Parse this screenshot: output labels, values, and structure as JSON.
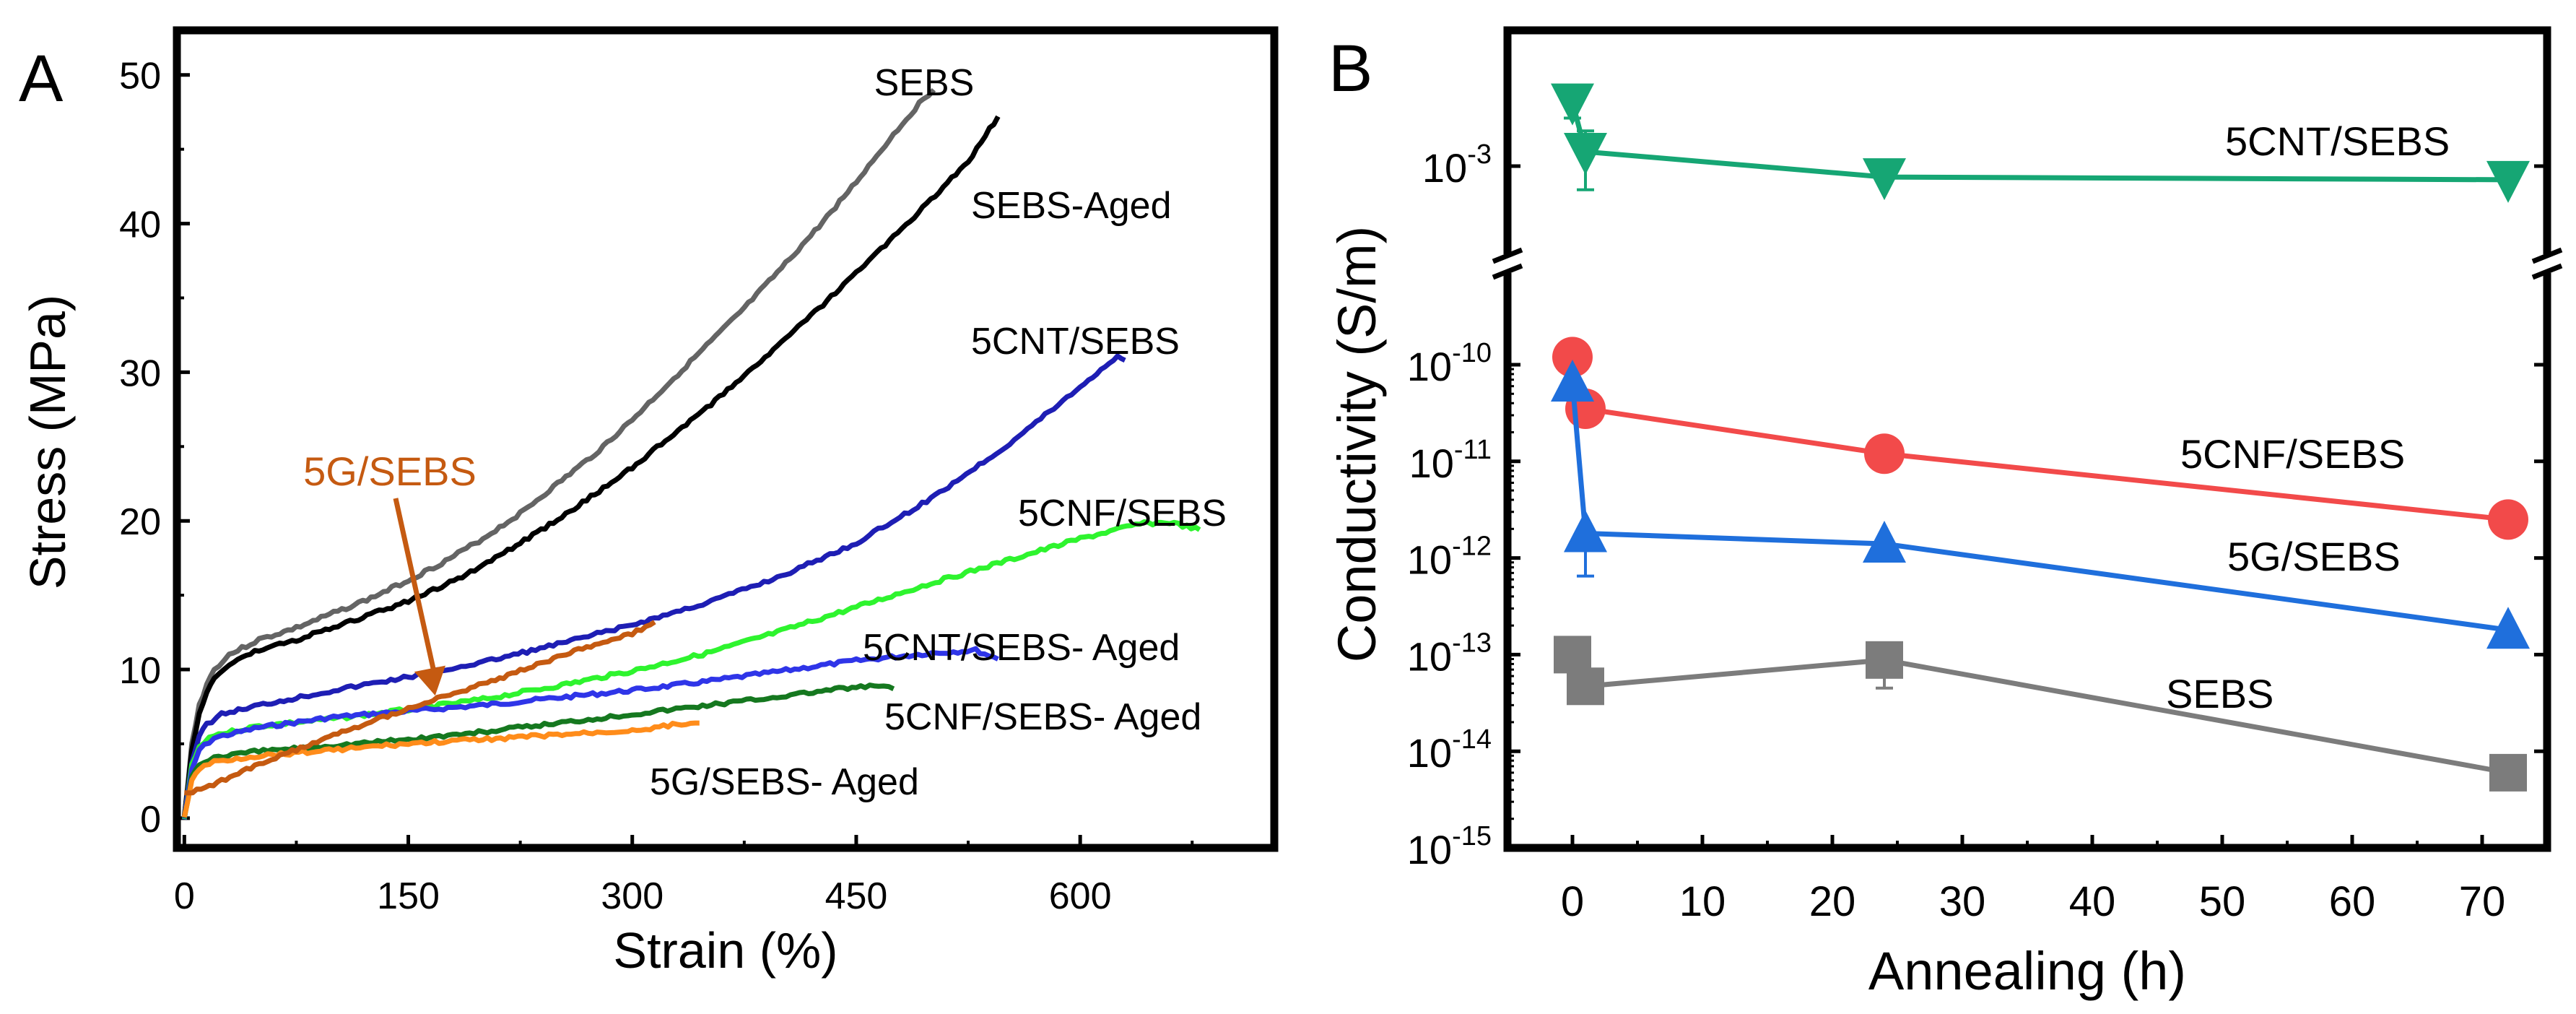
{
  "chart_data": [
    {
      "panel": "A",
      "type": "line",
      "xlabel": "Strain (%)",
      "ylabel": "Stress (MPa)",
      "xlim": [
        -5,
        730
      ],
      "ylim": [
        -2,
        53
      ],
      "xticks": [
        0,
        150,
        300,
        450,
        600
      ],
      "yticks": [
        0,
        10,
        20,
        30,
        40,
        50
      ],
      "tick_labels_x": [
        "0",
        "150",
        "300",
        "450",
        "600"
      ],
      "tick_labels_y": [
        "0",
        "10",
        "20",
        "30",
        "40",
        "50"
      ],
      "annotation": {
        "text": "5G/SEBS",
        "from": [
          140,
          24
        ],
        "to": [
          168,
          8
        ],
        "color": "#c55a11"
      },
      "series": [
        {
          "name": "SEBS",
          "label": "SEBS",
          "color": "#646464",
          "points": [
            [
              0,
              0
            ],
            [
              5,
              5
            ],
            [
              10,
              7.6
            ],
            [
              15,
              9
            ],
            [
              20,
              10
            ],
            [
              30,
              11
            ],
            [
              50,
              12
            ],
            [
              75,
              12.8
            ],
            [
              100,
              13.8
            ],
            [
              125,
              14.8
            ],
            [
              150,
              16
            ],
            [
              175,
              17.3
            ],
            [
              200,
              18.8
            ],
            [
              225,
              20.5
            ],
            [
              250,
              22.5
            ],
            [
              275,
              24.5
            ],
            [
              300,
              26.8
            ],
            [
              325,
              29.3
            ],
            [
              350,
              31.8
            ],
            [
              375,
              34.3
            ],
            [
              400,
              37
            ],
            [
              425,
              39.8
            ],
            [
              450,
              42.8
            ],
            [
              475,
              46
            ],
            [
              495,
              48.4
            ],
            [
              502,
              49
            ]
          ]
        },
        {
          "name": "SEBS-Aged",
          "label": "SEBS-Aged",
          "color": "#000000",
          "points": [
            [
              0,
              0
            ],
            [
              5,
              4.6
            ],
            [
              10,
              7
            ],
            [
              15,
              8.4
            ],
            [
              20,
              9.4
            ],
            [
              30,
              10.4
            ],
            [
              50,
              11.3
            ],
            [
              75,
              12
            ],
            [
              100,
              12.8
            ],
            [
              125,
              13.7
            ],
            [
              150,
              14.6
            ],
            [
              175,
              15.7
            ],
            [
              200,
              17
            ],
            [
              225,
              18.5
            ],
            [
              250,
              20.1
            ],
            [
              275,
              21.8
            ],
            [
              300,
              23.6
            ],
            [
              325,
              25.6
            ],
            [
              350,
              27.6
            ],
            [
              375,
              29.8
            ],
            [
              400,
              32
            ],
            [
              425,
              34.3
            ],
            [
              450,
              36.7
            ],
            [
              475,
              39.1
            ],
            [
              500,
              41.6
            ],
            [
              525,
              44.2
            ],
            [
              545,
              47.2
            ]
          ]
        },
        {
          "name": "5CNT/SEBS",
          "label": "5CNT/SEBS",
          "color": "#1e1eb4",
          "points": [
            [
              0,
              0
            ],
            [
              5,
              3.8
            ],
            [
              10,
              5.5
            ],
            [
              15,
              6.3
            ],
            [
              25,
              7
            ],
            [
              50,
              7.6
            ],
            [
              75,
              8.1
            ],
            [
              100,
              8.6
            ],
            [
              150,
              9.5
            ],
            [
              200,
              10.5
            ],
            [
              250,
              11.7
            ],
            [
              300,
              13
            ],
            [
              350,
              14.5
            ],
            [
              400,
              16.3
            ],
            [
              450,
              18.5
            ],
            [
              500,
              21.5
            ],
            [
              550,
              25
            ],
            [
              600,
              29
            ],
            [
              625,
              31.1
            ],
            [
              630,
              30.8
            ]
          ]
        },
        {
          "name": "5CNF/SEBS",
          "label": "5CNF/SEBS",
          "color": "#2ef42e",
          "points": [
            [
              0,
              0
            ],
            [
              5,
              3.5
            ],
            [
              10,
              4.8
            ],
            [
              20,
              5.6
            ],
            [
              50,
              6.2
            ],
            [
              100,
              6.7
            ],
            [
              150,
              7.3
            ],
            [
              200,
              8
            ],
            [
              250,
              8.9
            ],
            [
              300,
              9.9
            ],
            [
              350,
              11.1
            ],
            [
              400,
              12.6
            ],
            [
              450,
              14.2
            ],
            [
              500,
              15.8
            ],
            [
              550,
              17.3
            ],
            [
              600,
              18.8
            ],
            [
              640,
              19.8
            ],
            [
              660,
              19.9
            ],
            [
              680,
              19.4
            ]
          ]
        },
        {
          "name": "5CNT/SEBS- Aged",
          "label": "5CNT/SEBS- Aged",
          "color": "#2f35e8",
          "points": [
            [
              0,
              0
            ],
            [
              5,
              3.2
            ],
            [
              10,
              4.6
            ],
            [
              20,
              5.4
            ],
            [
              50,
              6.1
            ],
            [
              100,
              6.8
            ],
            [
              150,
              7.2
            ],
            [
              200,
              7.6
            ],
            [
              250,
              8.1
            ],
            [
              300,
              8.6
            ],
            [
              350,
              9.2
            ],
            [
              400,
              9.9
            ],
            [
              450,
              10.6
            ],
            [
              500,
              11.1
            ],
            [
              530,
              11.3
            ],
            [
              545,
              10.7
            ]
          ]
        },
        {
          "name": "5CNF/SEBS- Aged",
          "label": "5CNF/SEBS- Aged",
          "color": "#15781f",
          "points": [
            [
              0,
              0
            ],
            [
              5,
              2.8
            ],
            [
              10,
              3.6
            ],
            [
              20,
              4.1
            ],
            [
              50,
              4.5
            ],
            [
              100,
              4.9
            ],
            [
              150,
              5.3
            ],
            [
              200,
              5.8
            ],
            [
              250,
              6.4
            ],
            [
              300,
              7
            ],
            [
              350,
              7.6
            ],
            [
              400,
              8.2
            ],
            [
              430,
              8.6
            ],
            [
              450,
              8.8
            ],
            [
              465,
              8.9
            ],
            [
              475,
              8.7
            ]
          ]
        },
        {
          "name": "5G/SEBS- Aged",
          "label": "5G/SEBS- Aged",
          "color": "#ff8c1a",
          "points": [
            [
              0,
              0
            ],
            [
              5,
              2.6
            ],
            [
              10,
              3.3
            ],
            [
              20,
              3.8
            ],
            [
              50,
              4.2
            ],
            [
              100,
              4.6
            ],
            [
              150,
              5
            ],
            [
              200,
              5.3
            ],
            [
              250,
              5.6
            ],
            [
              300,
              5.9
            ],
            [
              330,
              6.3
            ],
            [
              345,
              6.4
            ]
          ]
        },
        {
          "name": "5G/SEBS",
          "label": "",
          "color": "#c55a11",
          "points": [
            [
              0,
              1.6
            ],
            [
              25,
              2.5
            ],
            [
              50,
              3.6
            ],
            [
              75,
              4.6
            ],
            [
              100,
              5.6
            ],
            [
              125,
              6.5
            ],
            [
              150,
              7.4
            ],
            [
              175,
              8.2
            ],
            [
              200,
              9
            ],
            [
              225,
              9.9
            ],
            [
              250,
              10.8
            ],
            [
              275,
              11.7
            ],
            [
              300,
              12.4
            ],
            [
              315,
              13.2
            ]
          ]
        }
      ]
    },
    {
      "panel": "B",
      "type": "line",
      "xlabel": "Annealing (h)",
      "ylabel": "Conductivity (S/m)",
      "xlim": [
        -5,
        75
      ],
      "xticks": [
        0,
        10,
        20,
        30,
        40,
        50,
        60,
        70
      ],
      "tick_labels_x": [
        "0",
        "10",
        "20",
        "30",
        "40",
        "50",
        "60",
        "70"
      ],
      "y_scale": "log, broken axis",
      "y_lower_range": [
        1e-15,
        1e-09
      ],
      "y_upper_range": [
        0.0003,
        0.006
      ],
      "ytick_bases": [
        "10",
        "10",
        "10",
        "10",
        "10",
        "10"
      ],
      "ytick_exponents": [
        "-15",
        "-14",
        "-13",
        "-12",
        "-11",
        "-10"
      ],
      "ytick_values": [
        1e-15,
        1e-14,
        1e-13,
        1e-12,
        1e-11,
        1e-10
      ],
      "upper_tick_base": "10",
      "upper_tick_exponent": "-3",
      "upper_tick_value": 0.001,
      "series": [
        {
          "name": "5CNT/SEBS",
          "label": "5CNT/SEBS",
          "color": "#16a674",
          "marker": "triangle-down",
          "x": [
            0,
            1,
            24,
            72
          ],
          "y": [
            0.0032,
            0.0013,
            0.00082,
            0.00078
          ],
          "error": [
            [
              0,
              0.0043,
              0.0024
            ],
            [
              1,
              0.0019,
              0.00065
            ]
          ]
        },
        {
          "name": "5CNF/SEBS",
          "label": "5CNF/SEBS",
          "color": "#f24a4a",
          "marker": "circle",
          "x": [
            0,
            1,
            24,
            72
          ],
          "y": [
            1.2e-10,
            3.5e-11,
            1.2e-11,
            2.5e-12
          ]
        },
        {
          "name": "5G/SEBS",
          "label": "5G/SEBS",
          "color": "#1f6fdc",
          "marker": "triangle-up",
          "x": [
            0,
            1,
            24,
            72
          ],
          "y": [
            6.5e-11,
            1.8e-12,
            1.4e-12,
            1.8e-13
          ],
          "error": [
            [
              1,
              1.9e-12,
              6.5e-13
            ]
          ]
        },
        {
          "name": "SEBS",
          "label": "SEBS",
          "color": "#7c7c7c",
          "marker": "square",
          "x": [
            0,
            1,
            24,
            72
          ],
          "y": [
            1e-13,
            4.7e-14,
            8.8e-14,
            6e-15
          ],
          "error": [
            [
              24,
              1.1e-13,
              4.5e-14
            ]
          ]
        }
      ]
    }
  ],
  "panel_letters": {
    "a": "A",
    "b": "B"
  }
}
